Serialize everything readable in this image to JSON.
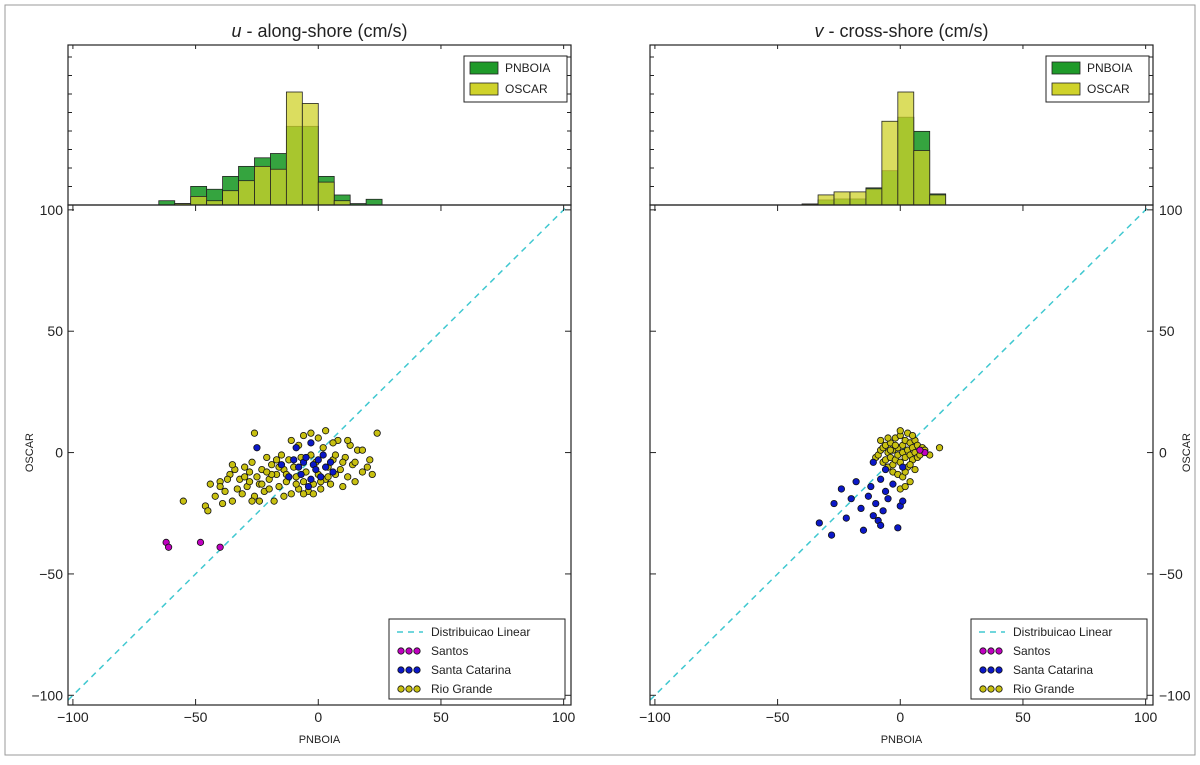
{
  "figure": {
    "colors": {
      "pnboia_hist": "#1f9a2a",
      "oscar_hist": "#cfd22a",
      "santos": "#c000c0",
      "santa_catarina": "#0b18c8",
      "rio_grande": "#c8c010",
      "linear": "#40c8d0"
    }
  },
  "chart_data": [
    {
      "type": "scatter",
      "title_var": "u",
      "title_rest": " - along-shore (cm/s)",
      "xlabel": "PNBOIA",
      "ylabel": "OSCAR",
      "xlim": [
        -102,
        103
      ],
      "ylim": [
        -104,
        102
      ],
      "xticks": [
        -100,
        -50,
        0,
        50,
        100
      ],
      "yticks": [
        -100,
        -50,
        0,
        50,
        100
      ],
      "xtick_labels": [
        "−100",
        "−50",
        "0",
        "50",
        "100"
      ],
      "ytick_labels": [
        "−100",
        "−50",
        "0",
        "50",
        "100"
      ],
      "ytick_side": "left",
      "legend_placement": "bottom-right",
      "legend": {
        "line": "Distribuicao Linear",
        "santos": "Santos",
        "santa_catarina": "Santa Catarina",
        "rio_grande": "Rio Grande"
      },
      "hist_legend": {
        "pnboia": "PNBOIA",
        "oscar": "OSCAR"
      },
      "hist_legend_placement": "top-right",
      "histogram": {
        "bin_edges": [
          -65,
          -58.5,
          -52,
          -45.5,
          -39,
          -32.5,
          -26,
          -19.5,
          -13,
          -6.5,
          0,
          6.5,
          13,
          19.5,
          26
        ],
        "pnboia_counts": [
          3,
          1,
          13,
          11,
          20,
          27,
          33,
          36,
          55,
          55,
          20,
          7,
          1,
          4
        ],
        "oscar_counts": [
          0,
          1,
          6,
          3,
          10,
          17,
          27,
          25,
          79,
          71,
          16,
          3,
          0,
          0
        ]
      },
      "series": [
        {
          "name": "Santos",
          "points": [
            [
              -62,
              -37
            ],
            [
              -61,
              -39
            ],
            [
              -48,
              -37
            ],
            [
              -40,
              -39
            ]
          ]
        },
        {
          "name": "Santa Catarina",
          "points": [
            [
              -25,
              2
            ],
            [
              -15,
              -5
            ],
            [
              -10,
              -3
            ],
            [
              -8,
              -6
            ],
            [
              -7,
              -9
            ],
            [
              -6,
              -4
            ],
            [
              -5,
              -2
            ],
            [
              -3,
              -11
            ],
            [
              -2,
              -5
            ],
            [
              -1,
              -7
            ],
            [
              0,
              -3
            ],
            [
              1,
              -10
            ],
            [
              2,
              -1
            ],
            [
              3,
              -6
            ],
            [
              5,
              -4
            ],
            [
              6,
              -8
            ],
            [
              -12,
              -10
            ],
            [
              -4,
              -14
            ],
            [
              -9,
              2
            ],
            [
              -3,
              4
            ]
          ]
        },
        {
          "name": "Rio Grande",
          "points": [
            [
              -55,
              -20
            ],
            [
              -46,
              -22
            ],
            [
              -45,
              -24
            ],
            [
              -42,
              -18
            ],
            [
              -40,
              -12
            ],
            [
              -38,
              -16
            ],
            [
              -36,
              -9
            ],
            [
              -35,
              -20
            ],
            [
              -33,
              -15
            ],
            [
              -32,
              -11
            ],
            [
              -30,
              -6
            ],
            [
              -29,
              -14
            ],
            [
              -28,
              -8
            ],
            [
              -27,
              -4
            ],
            [
              -26,
              -18
            ],
            [
              -25,
              -10
            ],
            [
              -24,
              -13
            ],
            [
              -23,
              -7
            ],
            [
              -22,
              -16
            ],
            [
              -21,
              -2
            ],
            [
              -20,
              -11
            ],
            [
              -19,
              -5
            ],
            [
              -18,
              -20
            ],
            [
              -17,
              -9
            ],
            [
              -16,
              -14
            ],
            [
              -15,
              -1
            ],
            [
              -14,
              -7
            ],
            [
              -13,
              -12
            ],
            [
              -12,
              -3
            ],
            [
              -11,
              -17
            ],
            [
              -10,
              -6
            ],
            [
              -9,
              -10
            ],
            [
              -8,
              -15
            ],
            [
              -7,
              -2
            ],
            [
              -6,
              -12
            ],
            [
              -5,
              -8
            ],
            [
              -4,
              -16
            ],
            [
              -3,
              -1
            ],
            [
              -2,
              -13
            ],
            [
              -1,
              -4
            ],
            [
              0,
              -9
            ],
            [
              1,
              -15
            ],
            [
              2,
              2
            ],
            [
              3,
              -11
            ],
            [
              4,
              -6
            ],
            [
              5,
              -13
            ],
            [
              6,
              -3
            ],
            [
              7,
              -9
            ],
            [
              8,
              5
            ],
            [
              9,
              -7
            ],
            [
              10,
              -14
            ],
            [
              11,
              -2
            ],
            [
              12,
              -10
            ],
            [
              13,
              3
            ],
            [
              14,
              -5
            ],
            [
              15,
              -12
            ],
            [
              16,
              1
            ],
            [
              18,
              -8
            ],
            [
              20,
              -6
            ],
            [
              22,
              -9
            ],
            [
              24,
              8
            ],
            [
              -40,
              -14
            ],
            [
              -37,
              -11
            ],
            [
              -34,
              -7
            ],
            [
              -31,
              -17
            ],
            [
              -28,
              -12
            ],
            [
              -26,
              8
            ],
            [
              -24,
              -20
            ],
            [
              -20,
              -15
            ],
            [
              -17,
              -3
            ],
            [
              -14,
              -18
            ],
            [
              -11,
              5
            ],
            [
              -8,
              3
            ],
            [
              -6,
              7
            ],
            [
              -3,
              8
            ],
            [
              0,
              6
            ],
            [
              3,
              9
            ],
            [
              6,
              4
            ],
            [
              -19,
              -9
            ],
            [
              -16,
              -6
            ],
            [
              -13,
              -9
            ],
            [
              -9,
              -13
            ],
            [
              -6,
              -17
            ],
            [
              -2,
              -17
            ],
            [
              1,
              -12
            ],
            [
              4,
              -10
            ],
            [
              7,
              -1
            ],
            [
              10,
              -4
            ],
            [
              12,
              5
            ],
            [
              15,
              -4
            ],
            [
              18,
              1
            ],
            [
              21,
              -3
            ],
            [
              -44,
              -13
            ],
            [
              -39,
              -21
            ],
            [
              -35,
              -5
            ],
            [
              -30,
              -10
            ],
            [
              -27,
              -20
            ],
            [
              -23,
              -13
            ],
            [
              -21,
              -8
            ]
          ]
        }
      ]
    },
    {
      "type": "scatter",
      "title_var": "v",
      "title_rest": " - cross-shore (cm/s)",
      "xlabel": "PNBOIA",
      "ylabel": "OSCAR",
      "xlim": [
        -102,
        103
      ],
      "ylim": [
        -104,
        102
      ],
      "xticks": [
        -100,
        -50,
        0,
        50,
        100
      ],
      "yticks": [
        -100,
        -50,
        0,
        50,
        100
      ],
      "xtick_labels": [
        "−100",
        "−50",
        "0",
        "50",
        "100"
      ],
      "ytick_labels": [
        "−100",
        "−50",
        "0",
        "50",
        "100"
      ],
      "ytick_side": "right",
      "legend_placement": "bottom-right",
      "legend": {
        "line": "Distribuicao Linear",
        "santos": "Santos",
        "santa_catarina": "Santa Catarina",
        "rio_grande": "Rio Grande"
      },
      "hist_legend": {
        "pnboia": "PNBOIA",
        "oscar": "OSCAR"
      },
      "hist_legend_placement": "top-right",
      "histogram": {
        "bin_edges": [
          -40,
          -33.5,
          -27,
          -20.5,
          -14,
          -7.5,
          -1,
          5.5,
          12,
          18.5
        ],
        "pnboia_counts": [
          1,
          5,
          6,
          6,
          17,
          34,
          87,
          73,
          11
        ],
        "oscar_counts": [
          1,
          10,
          13,
          13,
          16,
          83,
          112,
          54,
          10
        ]
      },
      "series": [
        {
          "name": "Santos",
          "points": [
            [
              10,
              0
            ],
            [
              8,
              1
            ]
          ]
        },
        {
          "name": "Santa Catarina",
          "points": [
            [
              -33,
              -29
            ],
            [
              -28,
              -34
            ],
            [
              -27,
              -21
            ],
            [
              -24,
              -15
            ],
            [
              -22,
              -27
            ],
            [
              -20,
              -19
            ],
            [
              -18,
              -12
            ],
            [
              -16,
              -23
            ],
            [
              -15,
              -32
            ],
            [
              -13,
              -18
            ],
            [
              -12,
              -14
            ],
            [
              -11,
              -26
            ],
            [
              -10,
              -21
            ],
            [
              -9,
              -28
            ],
            [
              -8,
              -11
            ],
            [
              -8,
              -30
            ],
            [
              -7,
              -24
            ],
            [
              -6,
              -16
            ],
            [
              -5,
              -19
            ],
            [
              -3,
              -13
            ],
            [
              -1,
              -31
            ],
            [
              0,
              -22
            ],
            [
              1,
              -20
            ],
            [
              1,
              -6
            ],
            [
              -6,
              -7
            ],
            [
              -11,
              -4
            ]
          ]
        },
        {
          "name": "Rio Grande",
          "points": [
            [
              -10,
              -2
            ],
            [
              -9,
              -1
            ],
            [
              -8,
              1
            ],
            [
              -7,
              -4
            ],
            [
              -7,
              2
            ],
            [
              -6,
              -3
            ],
            [
              -6,
              3
            ],
            [
              -5,
              0
            ],
            [
              -5,
              -6
            ],
            [
              -4,
              4
            ],
            [
              -4,
              -2
            ],
            [
              -3,
              1
            ],
            [
              -3,
              -5
            ],
            [
              -2,
              6
            ],
            [
              -2,
              -3
            ],
            [
              -1,
              2
            ],
            [
              -1,
              -1
            ],
            [
              0,
              7
            ],
            [
              0,
              -4
            ],
            [
              1,
              3
            ],
            [
              1,
              0
            ],
            [
              2,
              5
            ],
            [
              2,
              -2
            ],
            [
              3,
              1
            ],
            [
              3,
              -6
            ],
            [
              4,
              4
            ],
            [
              4,
              -1
            ],
            [
              5,
              2
            ],
            [
              5,
              -3
            ],
            [
              6,
              0
            ],
            [
              6,
              5
            ],
            [
              7,
              -2
            ],
            [
              7,
              3
            ],
            [
              8,
              -1
            ],
            [
              9,
              2
            ],
            [
              10,
              1
            ],
            [
              12,
              -1
            ],
            [
              16,
              2
            ],
            [
              0,
              -15
            ],
            [
              2,
              -14
            ],
            [
              4,
              -12
            ],
            [
              -3,
              -8
            ],
            [
              -1,
              -9
            ],
            [
              1,
              -10
            ],
            [
              -5,
              6
            ],
            [
              -8,
              5
            ],
            [
              0,
              9
            ],
            [
              3,
              8
            ],
            [
              5,
              7
            ],
            [
              -2,
              3
            ],
            [
              -4,
              1
            ],
            [
              2,
              -8
            ],
            [
              4,
              -5
            ],
            [
              6,
              -7
            ]
          ]
        }
      ]
    }
  ]
}
